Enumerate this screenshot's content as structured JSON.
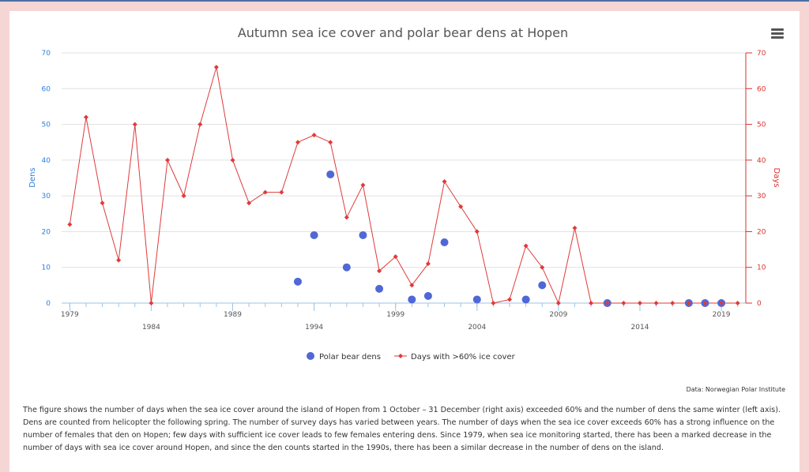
{
  "chart_data": {
    "type": "line+scatter",
    "title": "Autumn sea ice cover and polar bear dens at Hopen",
    "y_left_label": "Dens",
    "y_right_label": "Days",
    "ylim": [
      0,
      70
    ],
    "y_ticks": [
      0,
      10,
      20,
      30,
      40,
      50,
      60,
      70
    ],
    "xlim": [
      1978.5,
      2020.5
    ],
    "x_ticks": [
      1979,
      1984,
      1989,
      1994,
      1999,
      2004,
      2009,
      2014,
      2019
    ],
    "grid": true,
    "legend_position": "bottom-center",
    "colors": {
      "dens": "#5068d6",
      "days": "#e03a3a",
      "left_axis": "#2f7ed8",
      "right_axis": "#d9312b"
    },
    "series": [
      {
        "name": "Days with >60% ice cover",
        "axis": "right",
        "style": "line-diamond",
        "x": [
          1979,
          1980,
          1981,
          1982,
          1983,
          1984,
          1985,
          1986,
          1987,
          1988,
          1989,
          1990,
          1991,
          1992,
          1993,
          1994,
          1995,
          1996,
          1997,
          1998,
          1999,
          2000,
          2001,
          2002,
          2003,
          2004,
          2005,
          2006,
          2007,
          2008,
          2009,
          2010,
          2011,
          2012,
          2013,
          2014,
          2015,
          2016,
          2017,
          2018,
          2019,
          2020
        ],
        "values": [
          22,
          52,
          28,
          12,
          50,
          0,
          40,
          30,
          50,
          66,
          40,
          28,
          31,
          31,
          45,
          47,
          45,
          24,
          33,
          9,
          13,
          5,
          11,
          34,
          27,
          20,
          0,
          1,
          16,
          10,
          0,
          21,
          0,
          0,
          0,
          0,
          0,
          0,
          0,
          0,
          0,
          0
        ]
      },
      {
        "name": "Polar bear dens",
        "axis": "left",
        "style": "scatter-circle",
        "x": [
          1993,
          1994,
          1995,
          1996,
          1997,
          1998,
          2000,
          2001,
          2002,
          2004,
          2007,
          2008,
          2012,
          2017,
          2018,
          2019
        ],
        "values": [
          6,
          19,
          36,
          10,
          19,
          4,
          1,
          2,
          17,
          1,
          1,
          5,
          0,
          0,
          0,
          0
        ]
      }
    ]
  },
  "source_text": "Data: Norwegian Polar Institute",
  "caption": "The figure shows the number of days when the sea ice cover around the island of Hopen from 1 October – 31 December (right axis) exceeded 60% and the number of dens the same winter (left axis). Dens are counted from helicopter the following spring. The number of survey days has varied between years. The number of days when the sea ice cover exceeds 60% has a strong influence on the number of females that den on Hopen; few days with sufficient ice cover leads to few females entering dens. Since 1979, when sea ice monitoring started, there has been a marked decrease in the number of days with sea ice cover around Hopen, and since the den counts started in the 1990s, there has been a similar decrease in the number of dens on the island.",
  "menu_icon": "hamburger-menu-icon"
}
